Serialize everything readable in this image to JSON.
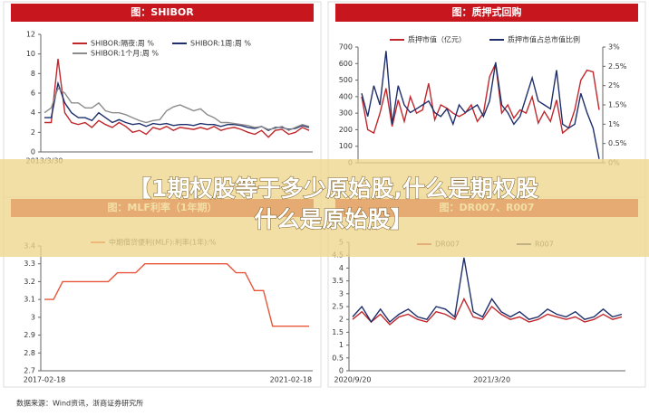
{
  "chart_data": [
    {
      "type": "line",
      "title": "图：SHIBOR",
      "categories": [
        "2013/3/30",
        null,
        null,
        null,
        null,
        null,
        null,
        null,
        null,
        null,
        null,
        null,
        null,
        null,
        null,
        null,
        null,
        null,
        null,
        null,
        null,
        null,
        null,
        null,
        null,
        null,
        null,
        null,
        null,
        null,
        null,
        null,
        null,
        null,
        null,
        null,
        null,
        null,
        null,
        null
      ],
      "series": [
        {
          "name": "SHIBOR:隔夜:周 %",
          "color": "#c0282d",
          "values": [
            3,
            3,
            9.5,
            4,
            3,
            2.8,
            3,
            2.5,
            3.2,
            2.8,
            2.5,
            3,
            2.6,
            2,
            2.2,
            1.8,
            2.5,
            2.3,
            2.6,
            2.2,
            2.5,
            2.4,
            2.3,
            2.5,
            2.3,
            2.6,
            2.2,
            2.4,
            2.5,
            2.3,
            2.0,
            1.8,
            2.2,
            1.5,
            2.2,
            2.3,
            1.8,
            2.0,
            2.5,
            2.2
          ]
        },
        {
          "name": "SHIBOR:1周:周 %",
          "color": "#1f2f6b",
          "values": [
            3.5,
            3.5,
            7,
            5,
            4,
            3.5,
            3.5,
            3.2,
            4,
            3.5,
            3,
            3.3,
            3,
            2.8,
            2.9,
            2.6,
            2.9,
            2.8,
            2.9,
            2.7,
            2.8,
            2.8,
            2.7,
            2.9,
            2.8,
            2.8,
            2.6,
            2.8,
            2.8,
            2.7,
            2.5,
            2.4,
            2.6,
            2.2,
            2.5,
            2.5,
            2.3,
            2.4,
            2.7,
            2.5
          ]
        },
        {
          "name": "SHIBOR:1个月:周 %",
          "color": "#8c8c8c",
          "values": [
            4,
            4.5,
            6.5,
            6,
            5,
            5,
            4.5,
            4.5,
            5,
            4.2,
            4,
            4,
            3.8,
            3.5,
            3.2,
            3.0,
            3.2,
            3.3,
            4.2,
            4.6,
            4.8,
            4.5,
            4.2,
            4.4,
            3.8,
            3.5,
            3.0,
            3.0,
            2.9,
            2.8,
            2.7,
            2.5,
            2.6,
            2.3,
            2.4,
            2.6,
            2.2,
            2.5,
            2.8,
            2.6
          ]
        }
      ],
      "ylim": [
        0,
        12
      ],
      "yticks": [
        0,
        2,
        4,
        6,
        8,
        10,
        12
      ]
    },
    {
      "type": "line",
      "title": "图：质押式回购",
      "categories": [
        null,
        null,
        null,
        null,
        null,
        null,
        null,
        null,
        null,
        null,
        null,
        null,
        null,
        null,
        null,
        null,
        null,
        null,
        null,
        null,
        null,
        null,
        null,
        null,
        null,
        null,
        null,
        null,
        null,
        null,
        null,
        null,
        null,
        null,
        null,
        null,
        null,
        null,
        null,
        null
      ],
      "series": [
        {
          "name": "质押市值（亿元）",
          "color": "#c0282d",
          "values": [
            400,
            200,
            180,
            300,
            450,
            220,
            380,
            250,
            400,
            300,
            320,
            480,
            260,
            350,
            330,
            300,
            280,
            300,
            350,
            250,
            300,
            520,
            600,
            300,
            350,
            270,
            320,
            300,
            400,
            240,
            310,
            250,
            380,
            180,
            210,
            320,
            500,
            560,
            550,
            320
          ]
        },
        {
          "name": "质押市值占总市值比例",
          "color": "#1f2f6b",
          "axis": "y2",
          "values": [
            1.8,
            1.2,
            2.0,
            1.5,
            2.9,
            1.0,
            2.0,
            1.5,
            1.3,
            1.4,
            1.5,
            1.6,
            1.3,
            1.2,
            1.4,
            1.0,
            1.5,
            1.3,
            1.4,
            1.5,
            1.2,
            1.6,
            2.6,
            1.5,
            1.3,
            1.0,
            1.2,
            1.7,
            2.2,
            1.6,
            1.5,
            1.4,
            2.4,
            1.0,
            0.9,
            1.0,
            1.8,
            1.3,
            0.9,
            0.1
          ]
        }
      ],
      "ylim": [
        0,
        700
      ],
      "yticks": [
        0,
        100,
        200,
        300,
        400,
        500,
        600,
        700
      ],
      "y2lim": [
        0,
        3
      ],
      "y2ticks": [
        {
          "value": 0,
          "label": "0%"
        },
        {
          "value": 0.5,
          "label": "0.5%"
        },
        {
          "value": 1,
          "label": "1%"
        },
        {
          "value": 1.5,
          "label": "1.5%"
        },
        {
          "value": 2,
          "label": "2%"
        },
        {
          "value": 2.5,
          "label": "2.5%"
        },
        {
          "value": 3,
          "label": "3%"
        }
      ]
    },
    {
      "type": "line",
      "title": "图：MLF利率（1年期）",
      "categories": [
        "2017-02-18",
        null,
        null,
        null,
        null,
        null,
        null,
        null,
        null,
        null,
        null,
        null,
        null,
        null,
        null,
        null,
        null,
        null,
        null,
        null,
        null,
        null,
        null,
        null,
        null,
        null,
        null,
        "2021-02-18",
        null,
        null
      ],
      "series": [
        {
          "name": "中期借贷便利(MLF):利率(1年):%",
          "color": "#e8553a",
          "values": [
            3.1,
            3.1,
            3.2,
            3.2,
            3.2,
            3.2,
            3.2,
            3.2,
            3.25,
            3.25,
            3.25,
            3.3,
            3.3,
            3.3,
            3.3,
            3.3,
            3.3,
            3.3,
            3.3,
            3.3,
            3.3,
            3.25,
            3.25,
            3.15,
            3.15,
            2.95,
            2.95,
            2.95,
            2.95,
            2.95
          ]
        }
      ],
      "ylim": [
        2.7,
        3.4
      ],
      "yticks": [
        2.7,
        2.8,
        2.9,
        3,
        3.1,
        3.2,
        3.3,
        3.4
      ]
    },
    {
      "type": "line",
      "title": "图：DR007、R007",
      "categories": [
        "2020/9/20",
        null,
        null,
        null,
        null,
        null,
        null,
        null,
        null,
        null,
        null,
        null,
        null,
        null,
        null,
        "2021/3/20",
        null,
        null,
        null,
        null,
        null,
        null,
        null,
        null,
        null,
        null,
        null,
        null,
        null,
        null
      ],
      "series": [
        {
          "name": "DR007",
          "color": "#c0282d",
          "values": [
            2.0,
            2.3,
            1.9,
            2.2,
            1.8,
            2.1,
            2.2,
            2.0,
            1.9,
            2.3,
            2.2,
            2.0,
            2.8,
            2.1,
            2.0,
            2.5,
            2.2,
            2.0,
            2.1,
            1.9,
            2.0,
            2.2,
            2.1,
            2.0,
            2.1,
            1.9,
            2.0,
            2.2,
            2.0,
            2.1
          ]
        },
        {
          "name": "R007",
          "color": "#1f2f6b",
          "values": [
            2.1,
            2.5,
            1.9,
            2.4,
            1.9,
            2.2,
            2.4,
            2.1,
            2.0,
            2.5,
            2.4,
            2.1,
            4.4,
            2.3,
            2.1,
            2.8,
            2.3,
            2.1,
            2.3,
            2.0,
            2.1,
            2.4,
            2.2,
            2.1,
            2.3,
            2.0,
            2.1,
            2.4,
            2.1,
            2.2
          ]
        }
      ],
      "ylim": [
        0,
        5
      ],
      "yticks": [
        0,
        0.5,
        1,
        1.5,
        2,
        2.5,
        3,
        3.5,
        4,
        4.5,
        5
      ]
    }
  ],
  "banner": {
    "lines": [
      "【1期权股等于多少原始股,什么是期权股",
      "什么是原始股】"
    ]
  },
  "footer": "数据来源：Wind资讯，浙商证券研究所"
}
